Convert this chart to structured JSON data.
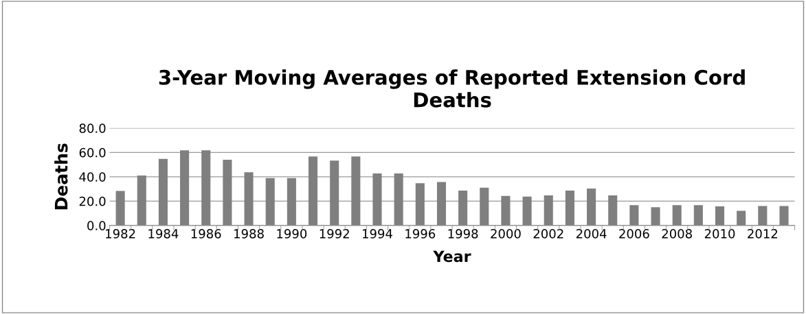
{
  "chart_data": {
    "type": "bar",
    "title": "3-Year Moving Averages of Reported Extension Cord\nDeaths",
    "xlabel": "Year",
    "ylabel": "Deaths",
    "categories": [
      "1982",
      null,
      "1984",
      null,
      "1986",
      null,
      "1988",
      null,
      "1990",
      null,
      "1992",
      null,
      "1994",
      null,
      "1996",
      null,
      "1998",
      null,
      "2000",
      null,
      "2002",
      null,
      "2004",
      null,
      "2006",
      null,
      "2008",
      null,
      "2010",
      null,
      "2012",
      null
    ],
    "values": [
      28.3,
      41.0,
      54.7,
      61.7,
      61.7,
      54.0,
      43.7,
      39.0,
      39.0,
      56.7,
      53.3,
      56.7,
      42.7,
      42.7,
      34.7,
      35.7,
      28.7,
      31.0,
      24.3,
      23.7,
      24.7,
      28.7,
      30.3,
      24.7,
      16.7,
      15.0,
      16.7,
      16.7,
      15.7,
      12.0,
      16.0,
      16.0
    ],
    "color": "#7f7f7f",
    "ylim": [
      0,
      80
    ],
    "yticks": [
      {
        "value": 0,
        "label": "0.0"
      },
      {
        "value": 20,
        "label": "20.0"
      },
      {
        "value": 40,
        "label": "40.0"
      },
      {
        "value": 60,
        "label": "60.0"
      },
      {
        "value": 80,
        "label": "80.0"
      }
    ],
    "grid": "y",
    "legend": false
  }
}
